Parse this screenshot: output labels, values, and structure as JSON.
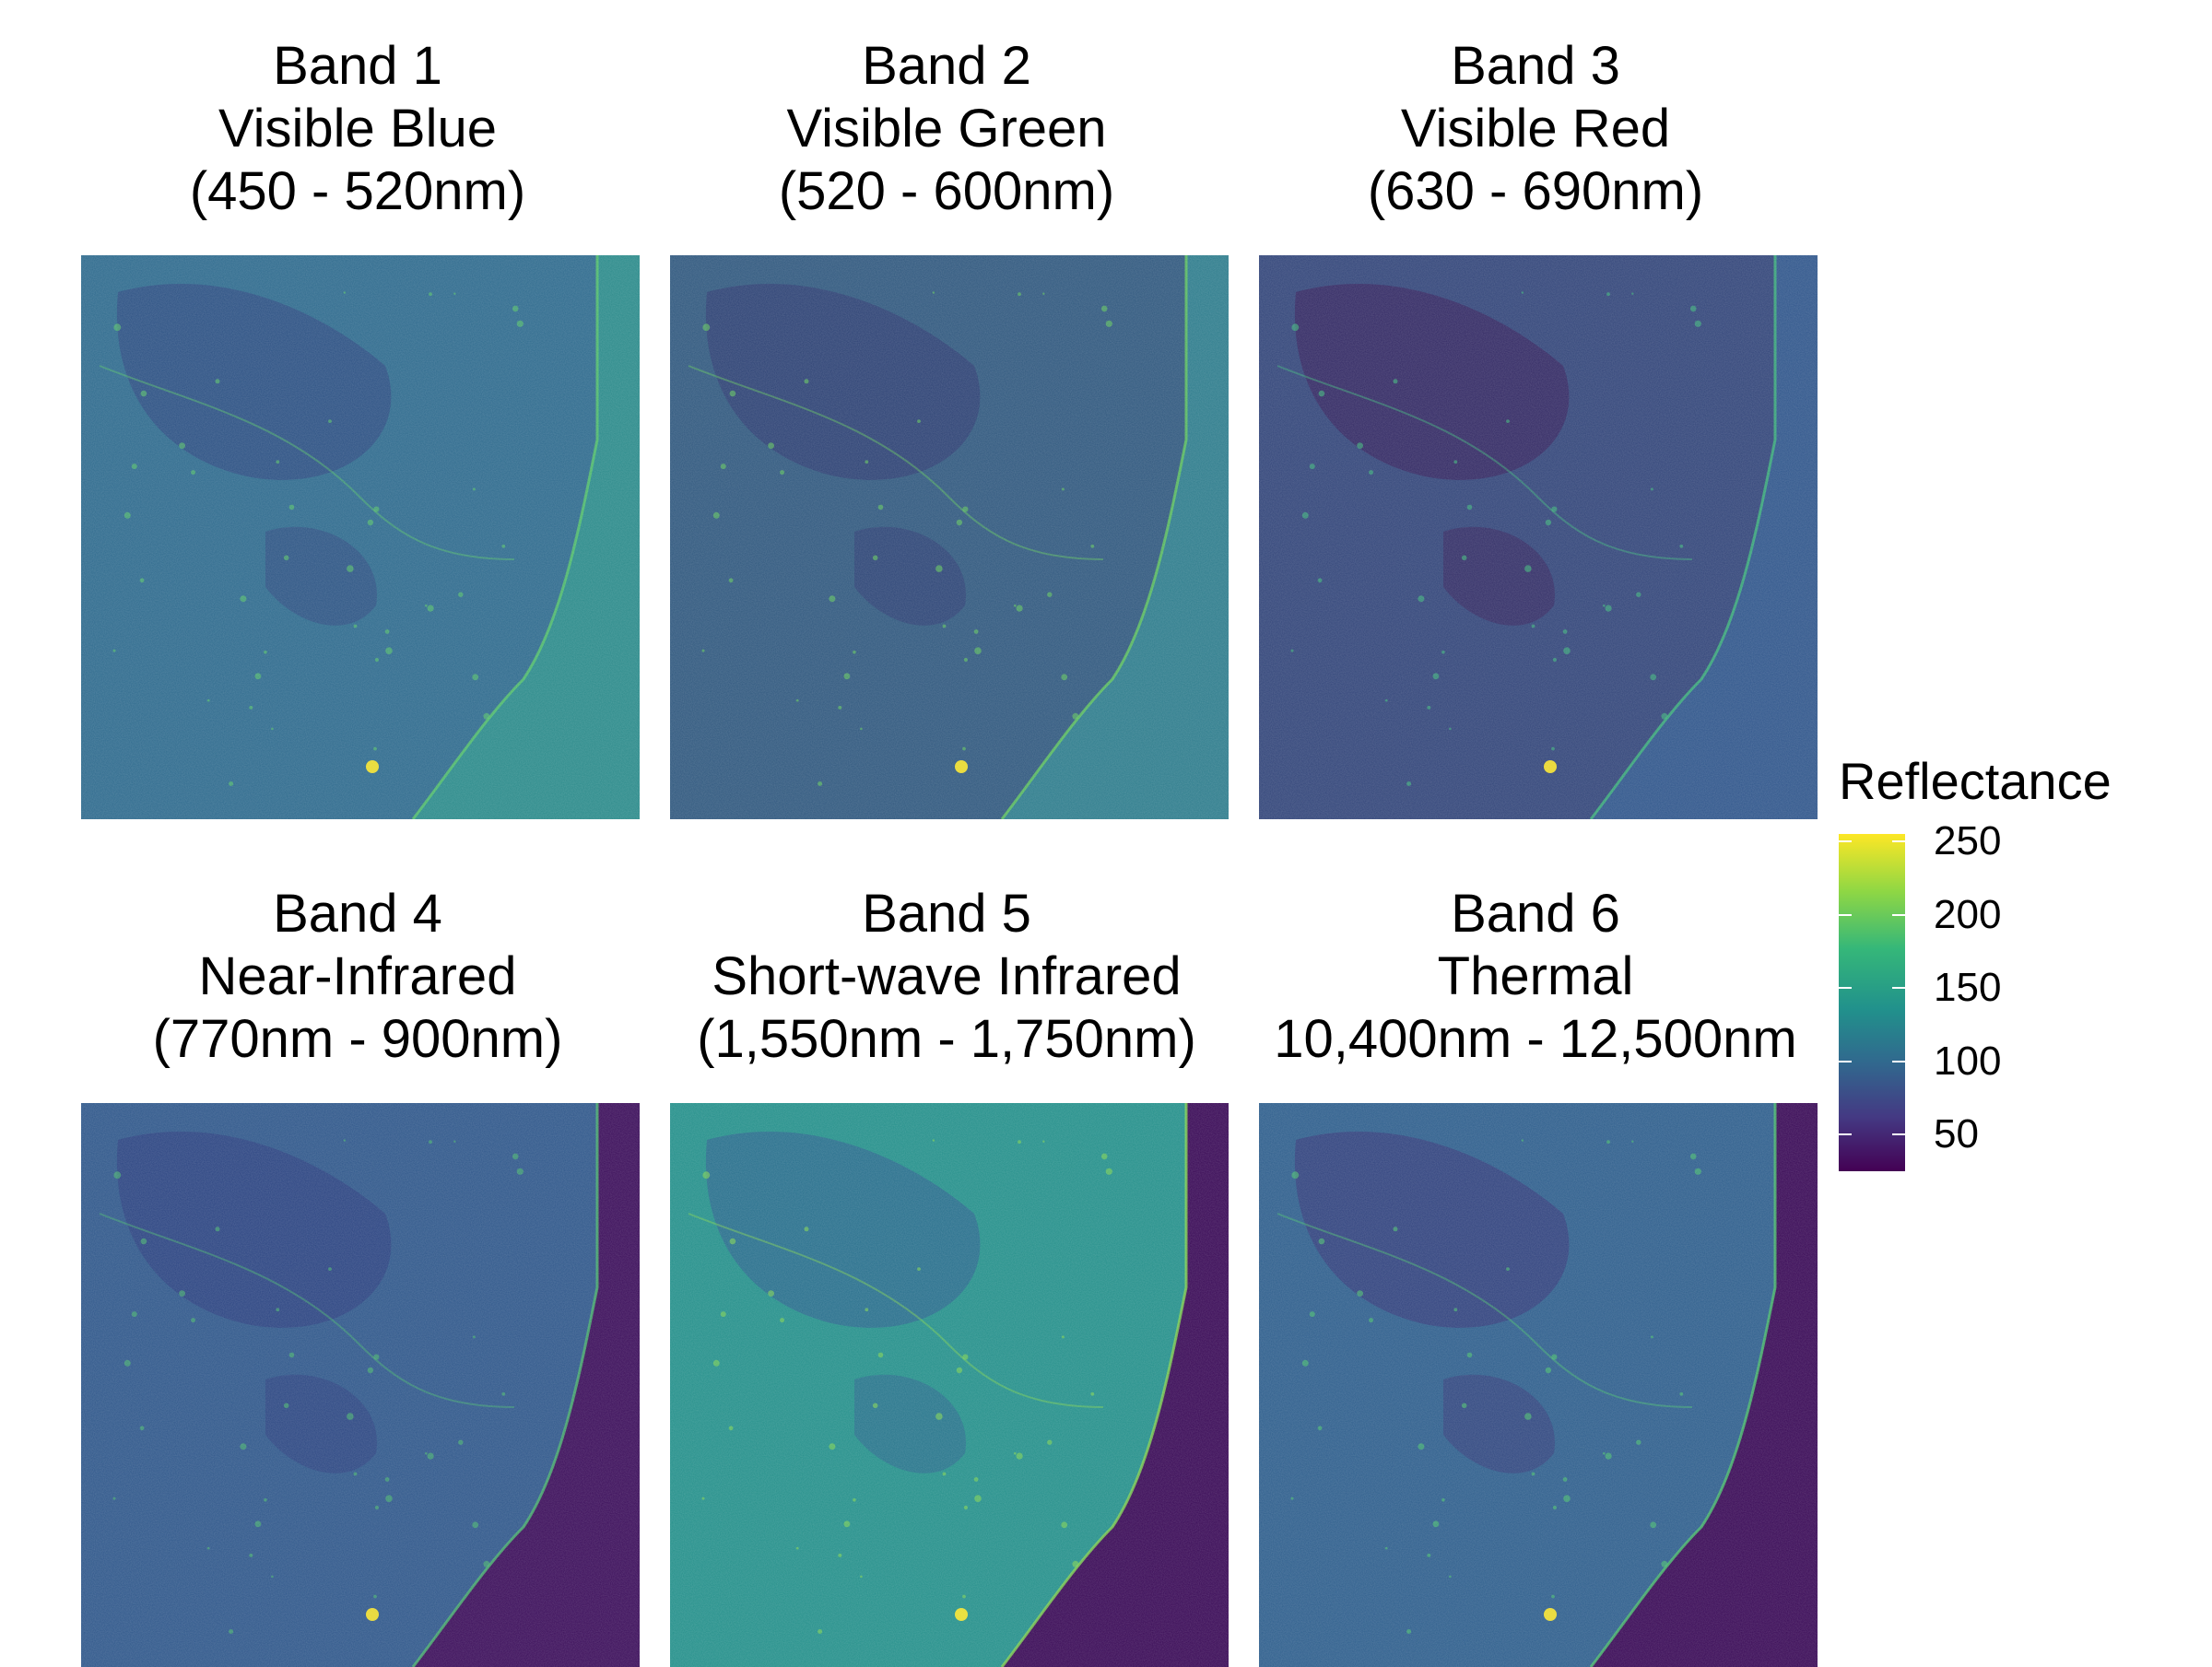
{
  "panels": [
    {
      "title_lines": [
        "Band 1",
        "Visible Blue",
        "(450 - 520nm)"
      ],
      "land_color": "#2f6b8e",
      "dark_color": "#2d4d82",
      "water_color": "#2c8b8b",
      "accent_color": "#56c566"
    },
    {
      "title_lines": [
        "Band 2",
        "Visible Green",
        "(520 - 600nm)"
      ],
      "land_color": "#31597f",
      "dark_color": "#2e3f73",
      "water_color": "#2f7d8d",
      "accent_color": "#61c85a"
    },
    {
      "title_lines": [
        "Band 3",
        "Visible Red",
        "(630 - 690nm)"
      ],
      "land_color": "#33467a",
      "dark_color": "#352761",
      "water_color": "#31578c",
      "accent_color": "#3cb779"
    },
    {
      "title_lines": [
        "Band 4",
        "Near-Infrared",
        "(770nm - 900nm)"
      ],
      "land_color": "#30588b",
      "dark_color": "#2c4280",
      "water_color": "#3c0f5b",
      "accent_color": "#48b76d"
    },
    {
      "title_lines": [
        "Band 5",
        "Short-wave Infrared",
        "(1,550nm - 1,750nm)"
      ],
      "land_color": "#25908b",
      "dark_color": "#2a6b8d",
      "water_color": "#3a0b57",
      "accent_color": "#7fd34e"
    },
    {
      "title_lines": [
        "Band 6",
        "Thermal",
        "10,400nm - 12,500nm"
      ],
      "land_color": "#2f5f8d",
      "dark_color": "#33407c",
      "water_color": "#3a0b57",
      "accent_color": "#49c16c"
    }
  ],
  "legend": {
    "title": "Reflectance",
    "ticks": [
      {
        "label": "250",
        "value": 250
      },
      {
        "label": "200",
        "value": 200
      },
      {
        "label": "150",
        "value": 150
      },
      {
        "label": "100",
        "value": 100
      },
      {
        "label": "50",
        "value": 50
      }
    ],
    "min": 25,
    "max": 255,
    "colors": [
      "#fde725",
      "#8fd744",
      "#35b779",
      "#21918c",
      "#31688e",
      "#443983",
      "#440154"
    ]
  }
}
